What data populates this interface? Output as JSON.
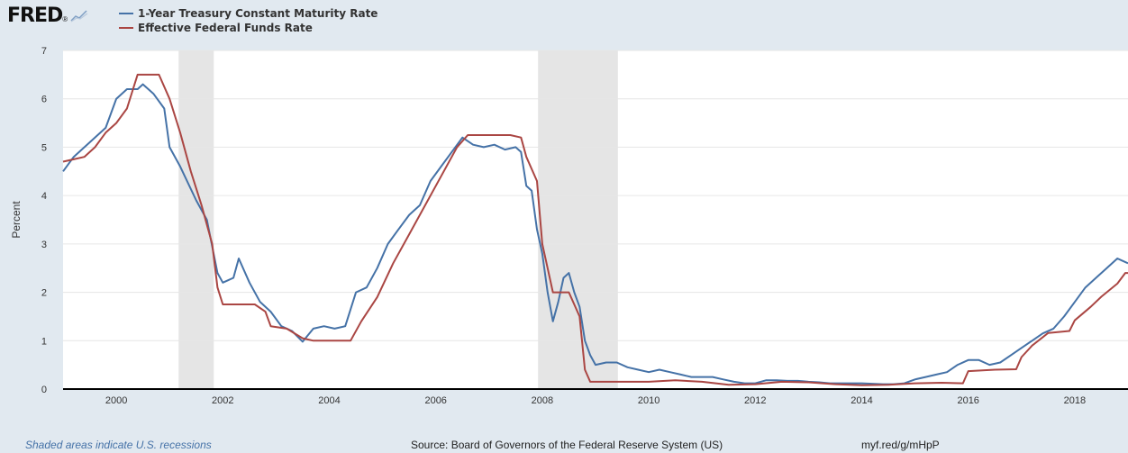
{
  "header": {
    "logo_text": "FRED",
    "logo_mark": "®"
  },
  "footer": {
    "note": "Shaded areas indicate U.S. recessions",
    "source": "Source: Board of Governors of the Federal Reserve System (US)",
    "url": "myf.red/g/mHpP"
  },
  "colors": {
    "background": "#e1e9f0",
    "plot_background": "#ffffff",
    "recession": "#e5e5e5",
    "treasury": "#4572a7",
    "fedfunds": "#aa4643"
  },
  "chart_data": {
    "type": "line",
    "title": "",
    "xlabel": "",
    "ylabel": "Percent",
    "xlim": [
      1999.0,
      2019.0
    ],
    "ylim": [
      0,
      7
    ],
    "x_ticks": [
      2000,
      2002,
      2004,
      2006,
      2008,
      2010,
      2012,
      2014,
      2016,
      2018
    ],
    "x_tick_labels": [
      "2000",
      "2002",
      "2004",
      "2006",
      "2008",
      "2010",
      "2012",
      "2014",
      "2016",
      "2018"
    ],
    "y_ticks": [
      0,
      1,
      2,
      3,
      4,
      5,
      6,
      7
    ],
    "y_tick_labels": [
      "0",
      "1",
      "2",
      "3",
      "4",
      "5",
      "6",
      "7"
    ],
    "grid": "horizontal",
    "legend_position": "top-left",
    "recessions": [
      [
        2001.17,
        2001.83
      ],
      [
        2007.92,
        2009.42
      ]
    ],
    "series": [
      {
        "name": "1-Year Treasury Constant Maturity Rate",
        "color": "#4572a7",
        "points": [
          [
            1999.0,
            4.5
          ],
          [
            1999.2,
            4.8
          ],
          [
            1999.5,
            5.1
          ],
          [
            1999.8,
            5.4
          ],
          [
            2000.0,
            6.0
          ],
          [
            2000.2,
            6.2
          ],
          [
            2000.4,
            6.2
          ],
          [
            2000.5,
            6.3
          ],
          [
            2000.7,
            6.1
          ],
          [
            2000.9,
            5.8
          ],
          [
            2001.0,
            5.0
          ],
          [
            2001.2,
            4.6
          ],
          [
            2001.5,
            3.9
          ],
          [
            2001.7,
            3.5
          ],
          [
            2001.9,
            2.4
          ],
          [
            2002.0,
            2.2
          ],
          [
            2002.2,
            2.3
          ],
          [
            2002.3,
            2.7
          ],
          [
            2002.5,
            2.2
          ],
          [
            2002.7,
            1.8
          ],
          [
            2002.9,
            1.6
          ],
          [
            2003.1,
            1.3
          ],
          [
            2003.3,
            1.2
          ],
          [
            2003.5,
            0.98
          ],
          [
            2003.7,
            1.25
          ],
          [
            2003.9,
            1.3
          ],
          [
            2004.1,
            1.25
          ],
          [
            2004.3,
            1.3
          ],
          [
            2004.5,
            2.0
          ],
          [
            2004.7,
            2.1
          ],
          [
            2004.9,
            2.5
          ],
          [
            2005.1,
            3.0
          ],
          [
            2005.3,
            3.3
          ],
          [
            2005.5,
            3.6
          ],
          [
            2005.7,
            3.8
          ],
          [
            2005.9,
            4.3
          ],
          [
            2006.1,
            4.6
          ],
          [
            2006.3,
            4.9
          ],
          [
            2006.5,
            5.2
          ],
          [
            2006.7,
            5.05
          ],
          [
            2006.9,
            5.0
          ],
          [
            2007.1,
            5.05
          ],
          [
            2007.3,
            4.95
          ],
          [
            2007.5,
            5.0
          ],
          [
            2007.6,
            4.9
          ],
          [
            2007.7,
            4.2
          ],
          [
            2007.8,
            4.1
          ],
          [
            2007.9,
            3.3
          ],
          [
            2008.0,
            2.8
          ],
          [
            2008.1,
            2.0
          ],
          [
            2008.2,
            1.4
          ],
          [
            2008.3,
            1.8
          ],
          [
            2008.4,
            2.3
          ],
          [
            2008.5,
            2.4
          ],
          [
            2008.6,
            2.0
          ],
          [
            2008.7,
            1.7
          ],
          [
            2008.8,
            1.0
          ],
          [
            2008.9,
            0.7
          ],
          [
            2009.0,
            0.5
          ],
          [
            2009.2,
            0.55
          ],
          [
            2009.4,
            0.55
          ],
          [
            2009.6,
            0.45
          ],
          [
            2009.8,
            0.4
          ],
          [
            2010.0,
            0.35
          ],
          [
            2010.2,
            0.4
          ],
          [
            2010.4,
            0.35
          ],
          [
            2010.6,
            0.3
          ],
          [
            2010.8,
            0.25
          ],
          [
            2011.0,
            0.25
          ],
          [
            2011.2,
            0.25
          ],
          [
            2011.4,
            0.2
          ],
          [
            2011.6,
            0.15
          ],
          [
            2011.8,
            0.12
          ],
          [
            2012.0,
            0.12
          ],
          [
            2012.2,
            0.18
          ],
          [
            2012.4,
            0.18
          ],
          [
            2012.6,
            0.17
          ],
          [
            2012.8,
            0.17
          ],
          [
            2013.0,
            0.15
          ],
          [
            2013.2,
            0.14
          ],
          [
            2013.4,
            0.12
          ],
          [
            2013.6,
            0.12
          ],
          [
            2013.8,
            0.12
          ],
          [
            2014.0,
            0.12
          ],
          [
            2014.2,
            0.11
          ],
          [
            2014.4,
            0.1
          ],
          [
            2014.6,
            0.1
          ],
          [
            2014.8,
            0.12
          ],
          [
            2015.0,
            0.2
          ],
          [
            2015.2,
            0.25
          ],
          [
            2015.4,
            0.3
          ],
          [
            2015.6,
            0.35
          ],
          [
            2015.8,
            0.5
          ],
          [
            2016.0,
            0.6
          ],
          [
            2016.2,
            0.6
          ],
          [
            2016.4,
            0.5
          ],
          [
            2016.6,
            0.55
          ],
          [
            2016.8,
            0.7
          ],
          [
            2017.0,
            0.85
          ],
          [
            2017.2,
            1.0
          ],
          [
            2017.4,
            1.15
          ],
          [
            2017.6,
            1.25
          ],
          [
            2017.8,
            1.5
          ],
          [
            2018.0,
            1.8
          ],
          [
            2018.2,
            2.1
          ],
          [
            2018.4,
            2.3
          ],
          [
            2018.6,
            2.5
          ],
          [
            2018.8,
            2.7
          ],
          [
            2018.9,
            2.65
          ],
          [
            2019.0,
            2.6
          ]
        ]
      },
      {
        "name": "Effective Federal Funds Rate",
        "color": "#aa4643",
        "points": [
          [
            1999.0,
            4.7
          ],
          [
            1999.2,
            4.75
          ],
          [
            1999.4,
            4.8
          ],
          [
            1999.6,
            5.0
          ],
          [
            1999.8,
            5.3
          ],
          [
            2000.0,
            5.5
          ],
          [
            2000.2,
            5.8
          ],
          [
            2000.4,
            6.5
          ],
          [
            2000.6,
            6.5
          ],
          [
            2000.8,
            6.5
          ],
          [
            2001.0,
            6.0
          ],
          [
            2001.2,
            5.3
          ],
          [
            2001.4,
            4.5
          ],
          [
            2001.6,
            3.8
          ],
          [
            2001.8,
            3.0
          ],
          [
            2001.9,
            2.1
          ],
          [
            2002.0,
            1.75
          ],
          [
            2002.3,
            1.75
          ],
          [
            2002.6,
            1.75
          ],
          [
            2002.8,
            1.6
          ],
          [
            2002.9,
            1.3
          ],
          [
            2003.2,
            1.25
          ],
          [
            2003.5,
            1.05
          ],
          [
            2003.7,
            1.0
          ],
          [
            2004.0,
            1.0
          ],
          [
            2004.4,
            1.0
          ],
          [
            2004.6,
            1.4
          ],
          [
            2004.9,
            1.9
          ],
          [
            2005.2,
            2.6
          ],
          [
            2005.5,
            3.2
          ],
          [
            2005.8,
            3.8
          ],
          [
            2006.1,
            4.4
          ],
          [
            2006.4,
            5.0
          ],
          [
            2006.6,
            5.25
          ],
          [
            2007.0,
            5.25
          ],
          [
            2007.4,
            5.25
          ],
          [
            2007.6,
            5.2
          ],
          [
            2007.7,
            4.8
          ],
          [
            2007.9,
            4.3
          ],
          [
            2008.0,
            3.0
          ],
          [
            2008.1,
            2.5
          ],
          [
            2008.2,
            2.0
          ],
          [
            2008.5,
            2.0
          ],
          [
            2008.7,
            1.5
          ],
          [
            2008.8,
            0.4
          ],
          [
            2008.9,
            0.15
          ],
          [
            2009.0,
            0.15
          ],
          [
            2009.5,
            0.15
          ],
          [
            2010.0,
            0.15
          ],
          [
            2010.5,
            0.18
          ],
          [
            2011.0,
            0.15
          ],
          [
            2011.5,
            0.09
          ],
          [
            2012.0,
            0.1
          ],
          [
            2012.5,
            0.15
          ],
          [
            2013.0,
            0.14
          ],
          [
            2013.5,
            0.1
          ],
          [
            2014.0,
            0.08
          ],
          [
            2014.5,
            0.09
          ],
          [
            2015.0,
            0.12
          ],
          [
            2015.5,
            0.13
          ],
          [
            2015.9,
            0.12
          ],
          [
            2016.0,
            0.37
          ],
          [
            2016.5,
            0.4
          ],
          [
            2016.9,
            0.41
          ],
          [
            2017.0,
            0.66
          ],
          [
            2017.2,
            0.9
          ],
          [
            2017.5,
            1.16
          ],
          [
            2017.9,
            1.2
          ],
          [
            2018.0,
            1.42
          ],
          [
            2018.3,
            1.7
          ],
          [
            2018.5,
            1.91
          ],
          [
            2018.8,
            2.18
          ],
          [
            2018.95,
            2.4
          ],
          [
            2019.0,
            2.4
          ]
        ]
      }
    ]
  }
}
